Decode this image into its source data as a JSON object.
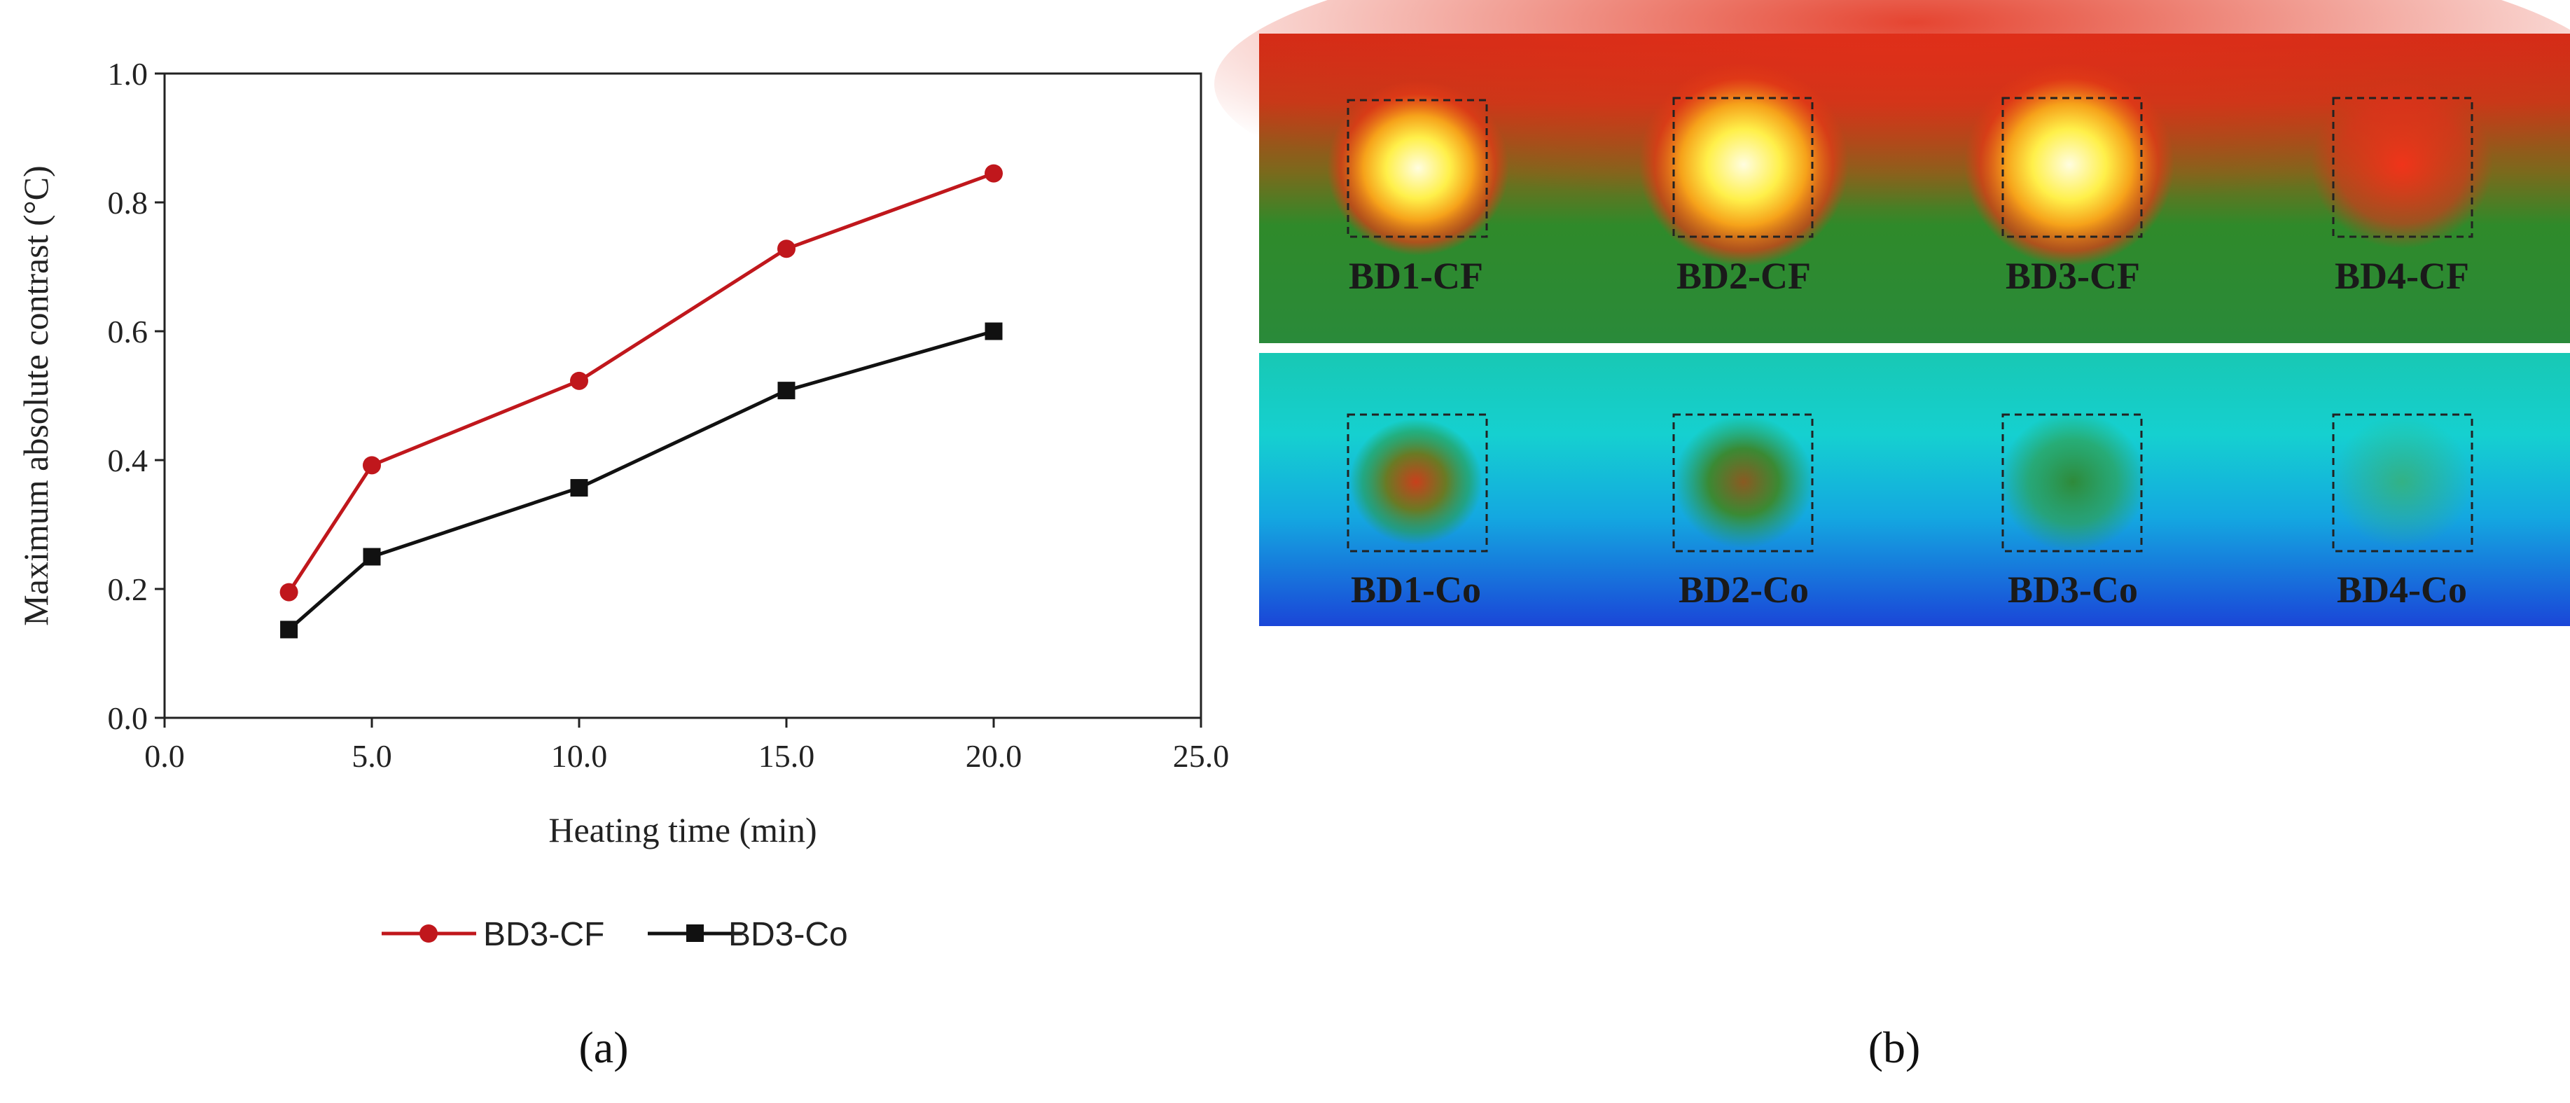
{
  "chart_data": {
    "type": "line",
    "xlabel": "Heating  time  (min)",
    "ylabel": "Maximum  absolute  contrast  (°C)",
    "xlim": [
      0,
      25
    ],
    "ylim": [
      0,
      1.0
    ],
    "x_ticks": [
      "0.0",
      "5.0",
      "10.0",
      "15.0",
      "20.0",
      "25.0"
    ],
    "y_ticks": [
      "0.0",
      "0.2",
      "0.4",
      "0.6",
      "0.8",
      "1.0"
    ],
    "x_tick_values": [
      0,
      5,
      10,
      15,
      20,
      25
    ],
    "y_tick_values": [
      0,
      0.2,
      0.4,
      0.6,
      0.8,
      1.0
    ],
    "grid": false,
    "legend_position": "bottom",
    "series": [
      {
        "name": "BD3-CF",
        "color": "#c0171c",
        "marker": "circle",
        "x": [
          3,
          5,
          10,
          15,
          20
        ],
        "y": [
          0.195,
          0.392,
          0.523,
          0.728,
          0.845
        ]
      },
      {
        "name": "BD3-Co",
        "color": "#111111",
        "marker": "square",
        "x": [
          3,
          5,
          10,
          15,
          20
        ],
        "y": [
          0.137,
          0.25,
          0.357,
          0.508,
          0.6
        ]
      }
    ]
  },
  "panel_a_label": "(a)",
  "panel_b_label": "(b)",
  "thermogram": {
    "top_labels": [
      "BD1-CF",
      "BD2-CF",
      "BD3-CF",
      "BD4-CF"
    ],
    "bottom_labels": [
      "BD1-Co",
      "BD2-Co",
      "BD3-Co",
      "BD4-Co"
    ]
  }
}
